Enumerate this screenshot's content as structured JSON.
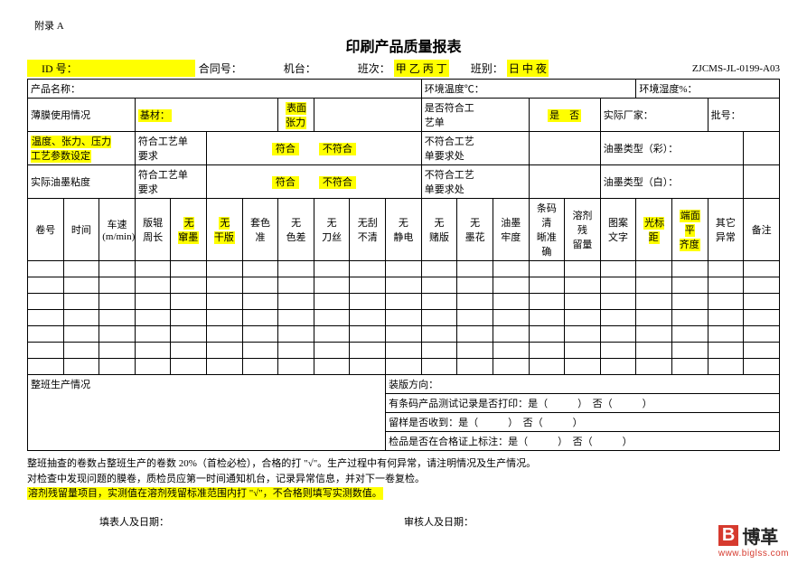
{
  "appendix": "附录 A",
  "title": "印刷产品质量报表",
  "row1": {
    "id": "ID 号：",
    "contract": "合同号：",
    "machine": "机台：",
    "shift": "班次：",
    "shift_opts": "甲 乙 丙 丁",
    "classlbl": "班别：",
    "class_opts": "日 中 夜",
    "formcode": "ZJCMS-JL-0199-A03"
  },
  "r2": {
    "prod": "产品名称：",
    "temp": "环境温度℃：",
    "humid": "环境湿度%："
  },
  "r3": {
    "film": "薄膜使用情况",
    "base": "基材：",
    "tension": "表面\n张力",
    "spec": "是否符合工\n艺单",
    "yn": "是　否",
    "vendor": "实际厂家：",
    "batch": "批号："
  },
  "r4": {
    "param": "温度、张力、压力\n工艺参数设定",
    "req": "符合工艺单\n要求",
    "fit": "符合",
    "nofit": "不符合",
    "nofitproc": "不符合工艺\n单要求处",
    "inktype_c": "油墨类型（彩）："
  },
  "r5": {
    "visc": "实际油墨粘度",
    "req": "符合工艺单\n要求",
    "fit": "符合",
    "nofit": "不符合",
    "nofitproc": "不符合工艺\n单要求处",
    "inktype_w": "油墨类型（白）："
  },
  "cols": [
    "卷号",
    "时间",
    "车速\n(m/min)",
    "版辊\n周长",
    "无\n窜墨",
    "无\n干版",
    "套色\n准",
    "无\n色差",
    "无\n刀丝",
    "无刮\n不清",
    "无\n静电",
    "无\n赌版",
    "无\n墨花",
    "油墨\n牢度",
    "条码清\n晰准确",
    "溶剂残\n留量",
    "图案\n文字",
    "光标\n距",
    "端面平\n齐度",
    "其它异常",
    "备注"
  ],
  "col_hl": [
    false,
    false,
    false,
    false,
    true,
    true,
    false,
    false,
    false,
    false,
    false,
    false,
    false,
    false,
    false,
    false,
    false,
    true,
    true,
    false,
    false
  ],
  "summary_label": "整班生产情况",
  "q": {
    "plate": "装版方向：",
    "barcode": "有条码产品测试记录是否打印：",
    "sample": "留样是否收到：",
    "qc": "检品是否在合格证上标注：",
    "yes": "是（　　　）",
    "no": "否（　　　）"
  },
  "notes": {
    "n1": "整班抽查的卷数占整班生产的卷数 20%（首检必检），合格的打 \"√\"。生产过程中有何异常，请注明情况及生产情况。",
    "n2": "对检查中发现问题的膜卷，质检员应第一时间通知机台，记录异常信息，并对下一卷复检。",
    "n3": "溶剂残留量项目，实测值在溶剂残留标准范围内打 \"√\"，不合格则填写实测数值。"
  },
  "sign": {
    "filler": "填表人及日期：",
    "reviewer": "审核人及日期："
  },
  "logo": {
    "b": "B",
    "name": "博革",
    "url": "www.biglss.com"
  }
}
